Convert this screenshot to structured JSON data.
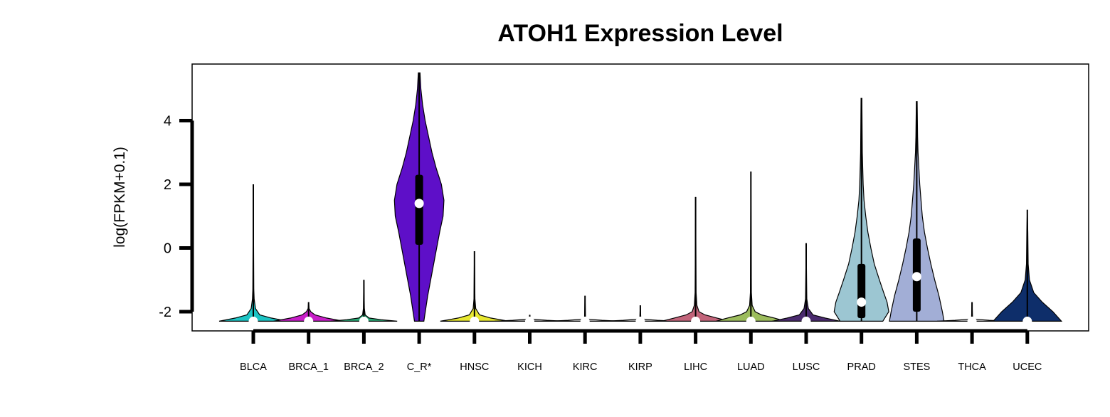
{
  "chart_data": {
    "type": "violin",
    "title": "ATOH1 Expression Level",
    "xlabel": "",
    "ylabel": "log(FPKM+0.1)",
    "ylim": [
      -2.6,
      5.8
    ],
    "yticks": [
      -2,
      0,
      2,
      4
    ],
    "grid": false,
    "legend": "none",
    "series": [
      {
        "name": "BLCA",
        "color": "#1cc4c4",
        "min": -2.3,
        "max": 2.0,
        "median": -2.3,
        "q1": -2.3,
        "q3": -2.3,
        "profile": [
          [
            -2.3,
            0.8
          ],
          [
            -2.2,
            0.42
          ],
          [
            -2.1,
            0.15
          ],
          [
            -1.9,
            0.05
          ],
          [
            -1.6,
            0.02
          ],
          [
            -1.3,
            0.012
          ]
        ]
      },
      {
        "name": "BRCA_1",
        "color": "#c81ec8",
        "min": -2.3,
        "max": -1.7,
        "median": -2.3,
        "q1": -2.3,
        "q3": -2.3,
        "profile": [
          [
            -2.3,
            0.82
          ],
          [
            -2.2,
            0.42
          ],
          [
            -2.1,
            0.15
          ],
          [
            -2.0,
            0.05
          ],
          [
            -1.9,
            0.012
          ]
        ]
      },
      {
        "name": "BRCA_2",
        "color": "#2ab07a",
        "min": -2.3,
        "max": -1.0,
        "median": -2.3,
        "q1": -2.3,
        "q3": -2.3,
        "profile": [
          [
            -2.3,
            0.78
          ],
          [
            -2.25,
            0.4
          ],
          [
            -2.2,
            0.12
          ],
          [
            -2.1,
            0.03
          ],
          [
            -1.9,
            0.012
          ]
        ]
      },
      {
        "name": "C_R*",
        "color": "#5e0fc8",
        "min": -2.3,
        "max": 5.5,
        "median": 1.4,
        "q1": 0.1,
        "q3": 2.3,
        "profile": [
          [
            -2.3,
            0.11
          ],
          [
            -1.5,
            0.2
          ],
          [
            -0.5,
            0.34
          ],
          [
            0.5,
            0.48
          ],
          [
            1.0,
            0.56
          ],
          [
            1.5,
            0.58
          ],
          [
            2.0,
            0.52
          ],
          [
            2.5,
            0.4
          ],
          [
            3.0,
            0.3
          ],
          [
            3.5,
            0.22
          ],
          [
            4.0,
            0.14
          ],
          [
            4.5,
            0.08
          ],
          [
            5.0,
            0.04
          ],
          [
            5.5,
            0.02
          ]
        ]
      },
      {
        "name": "HNSC",
        "color": "#e8e830",
        "min": -2.3,
        "max": -0.1,
        "median": -2.3,
        "q1": -2.3,
        "q3": -2.3,
        "profile": [
          [
            -2.3,
            0.8
          ],
          [
            -2.2,
            0.38
          ],
          [
            -2.1,
            0.12
          ],
          [
            -1.9,
            0.03
          ],
          [
            -1.6,
            0.012
          ]
        ]
      },
      {
        "name": "KICH",
        "color": "#b2b2b2",
        "min": -2.3,
        "max": -2.1,
        "median": -2.3,
        "q1": -2.3,
        "q3": -2.3,
        "profile": [
          [
            -2.3,
            0.82
          ],
          [
            -2.27,
            0.4
          ],
          [
            -2.24,
            0.1
          ],
          [
            -2.2,
            0.012
          ]
        ]
      },
      {
        "name": "KIRC",
        "color": "#d0d0d0",
        "min": -2.3,
        "max": -1.5,
        "median": -2.3,
        "q1": -2.3,
        "q3": -2.3,
        "profile": [
          [
            -2.3,
            0.82
          ],
          [
            -2.27,
            0.4
          ],
          [
            -2.24,
            0.1
          ],
          [
            -2.2,
            0.012
          ]
        ]
      },
      {
        "name": "KIRP",
        "color": "#c8c8c8",
        "min": -2.3,
        "max": -1.8,
        "median": -2.3,
        "q1": -2.3,
        "q3": -2.3,
        "profile": [
          [
            -2.3,
            0.82
          ],
          [
            -2.27,
            0.4
          ],
          [
            -2.24,
            0.1
          ],
          [
            -2.2,
            0.012
          ]
        ]
      },
      {
        "name": "LIHC",
        "color": "#c2647a",
        "min": -2.3,
        "max": 1.6,
        "median": -2.3,
        "q1": -2.3,
        "q3": -2.3,
        "profile": [
          [
            -2.3,
            0.8
          ],
          [
            -2.2,
            0.5
          ],
          [
            -2.1,
            0.22
          ],
          [
            -2.0,
            0.08
          ],
          [
            -1.8,
            0.03
          ],
          [
            -1.4,
            0.012
          ]
        ]
      },
      {
        "name": "LUAD",
        "color": "#9cbc5c",
        "min": -2.3,
        "max": 2.4,
        "median": -2.3,
        "q1": -2.3,
        "q3": -2.3,
        "profile": [
          [
            -2.3,
            0.82
          ],
          [
            -2.2,
            0.55
          ],
          [
            -2.1,
            0.25
          ],
          [
            -2.0,
            0.1
          ],
          [
            -1.8,
            0.03
          ],
          [
            -1.4,
            0.012
          ]
        ]
      },
      {
        "name": "LUSC",
        "color": "#4a2a6e",
        "min": -2.3,
        "max": 0.15,
        "median": -2.3,
        "q1": -2.3,
        "q3": -2.3,
        "profile": [
          [
            -2.3,
            0.8
          ],
          [
            -2.2,
            0.45
          ],
          [
            -2.1,
            0.16
          ],
          [
            -1.9,
            0.05
          ],
          [
            -1.6,
            0.015
          ]
        ]
      },
      {
        "name": "PRAD",
        "color": "#9cc6d2",
        "min": -2.3,
        "max": 4.7,
        "median": -1.7,
        "q1": -2.2,
        "q3": -0.5,
        "profile": [
          [
            -2.3,
            0.5
          ],
          [
            -2.0,
            0.64
          ],
          [
            -1.7,
            0.6
          ],
          [
            -1.4,
            0.52
          ],
          [
            -1.0,
            0.42
          ],
          [
            -0.5,
            0.3
          ],
          [
            0.0,
            0.22
          ],
          [
            0.5,
            0.15
          ],
          [
            1.0,
            0.1
          ],
          [
            1.5,
            0.06
          ],
          [
            2.0,
            0.04
          ],
          [
            3.0,
            0.02
          ],
          [
            4.7,
            0.01
          ]
        ]
      },
      {
        "name": "STES",
        "color": "#a2aed6",
        "min": -2.3,
        "max": 4.6,
        "median": -0.9,
        "q1": -2.0,
        "q3": 0.3,
        "profile": [
          [
            -2.3,
            0.64
          ],
          [
            -2.0,
            0.6
          ],
          [
            -1.5,
            0.52
          ],
          [
            -1.0,
            0.42
          ],
          [
            -0.5,
            0.33
          ],
          [
            0.0,
            0.25
          ],
          [
            0.5,
            0.18
          ],
          [
            1.0,
            0.13
          ],
          [
            1.5,
            0.1
          ],
          [
            2.0,
            0.07
          ],
          [
            2.5,
            0.05
          ],
          [
            3.0,
            0.03
          ],
          [
            3.5,
            0.02
          ],
          [
            4.6,
            0.01
          ]
        ]
      },
      {
        "name": "THCA",
        "color": "#d8d8d8",
        "min": -2.3,
        "max": -1.7,
        "median": -2.3,
        "q1": -2.3,
        "q3": -2.3,
        "profile": [
          [
            -2.3,
            0.82
          ],
          [
            -2.27,
            0.4
          ],
          [
            -2.24,
            0.1
          ],
          [
            -2.2,
            0.012
          ]
        ]
      },
      {
        "name": "UCEC",
        "color": "#0e2e6a",
        "min": -2.3,
        "max": 1.2,
        "median": -2.3,
        "q1": -2.3,
        "q3": -2.3,
        "profile": [
          [
            -2.3,
            0.8
          ],
          [
            -2.0,
            0.6
          ],
          [
            -1.7,
            0.35
          ],
          [
            -1.4,
            0.15
          ],
          [
            -1.0,
            0.05
          ],
          [
            -0.5,
            0.02
          ],
          [
            0.5,
            0.012
          ]
        ]
      }
    ]
  }
}
